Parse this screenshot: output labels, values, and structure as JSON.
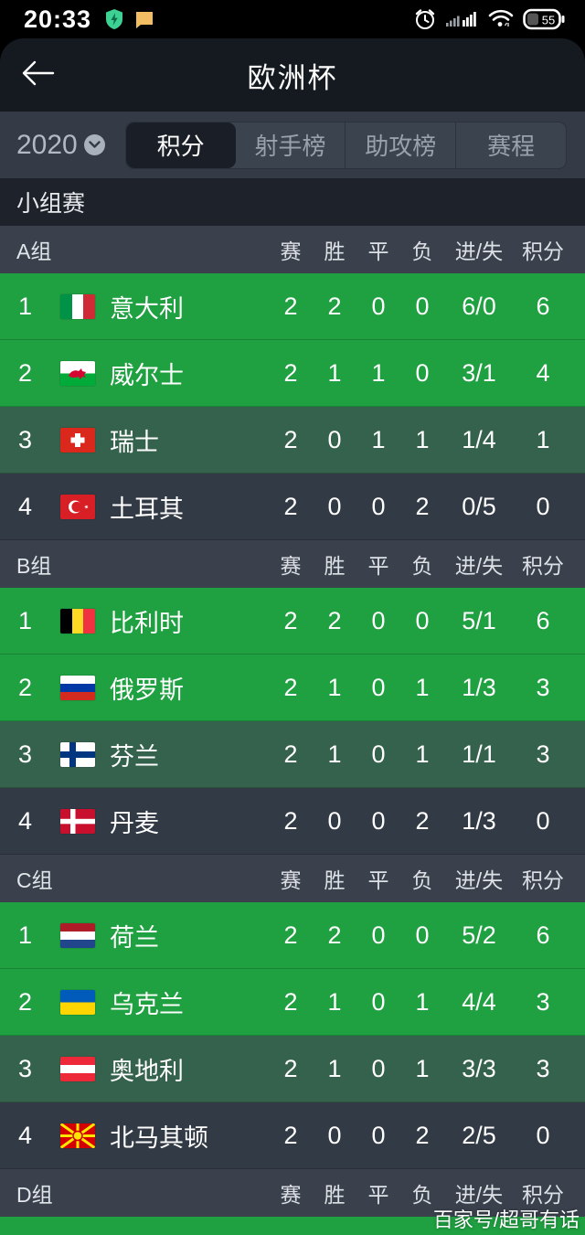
{
  "status_bar": {
    "time": "20:33",
    "battery_percent": "55",
    "left_icons": [
      "shield-icon",
      "message-icon"
    ],
    "right_icons": [
      "alarm-icon",
      "signal-icon",
      "wifi-icon",
      "battery-icon"
    ]
  },
  "header": {
    "title": "欧洲杯"
  },
  "filter_bar": {
    "season": "2020",
    "tabs": [
      {
        "label": "积分",
        "active": true
      },
      {
        "label": "射手榜",
        "active": false
      },
      {
        "label": "助攻榜",
        "active": false
      },
      {
        "label": "赛程",
        "active": false
      }
    ]
  },
  "section": {
    "title": "小组赛"
  },
  "table": {
    "columns": [
      "赛",
      "胜",
      "平",
      "负",
      "进/失",
      "积分"
    ],
    "groups": [
      {
        "name": "A组",
        "teams": [
          {
            "rank": "1",
            "flag": "italy",
            "team": "意大利",
            "played": "2",
            "won": "2",
            "drawn": "0",
            "lost": "0",
            "goals": "6/0",
            "points": "6"
          },
          {
            "rank": "2",
            "flag": "wales",
            "team": "威尔士",
            "played": "2",
            "won": "1",
            "drawn": "1",
            "lost": "0",
            "goals": "3/1",
            "points": "4"
          },
          {
            "rank": "3",
            "flag": "switzerland",
            "team": "瑞士",
            "played": "2",
            "won": "0",
            "drawn": "1",
            "lost": "1",
            "goals": "1/4",
            "points": "1"
          },
          {
            "rank": "4",
            "flag": "turkey",
            "team": "土耳其",
            "played": "2",
            "won": "0",
            "drawn": "0",
            "lost": "2",
            "goals": "0/5",
            "points": "0"
          }
        ]
      },
      {
        "name": "B组",
        "teams": [
          {
            "rank": "1",
            "flag": "belgium",
            "team": "比利时",
            "played": "2",
            "won": "2",
            "drawn": "0",
            "lost": "0",
            "goals": "5/1",
            "points": "6"
          },
          {
            "rank": "2",
            "flag": "russia",
            "team": "俄罗斯",
            "played": "2",
            "won": "1",
            "drawn": "0",
            "lost": "1",
            "goals": "1/3",
            "points": "3"
          },
          {
            "rank": "3",
            "flag": "finland",
            "team": "芬兰",
            "played": "2",
            "won": "1",
            "drawn": "0",
            "lost": "1",
            "goals": "1/1",
            "points": "3"
          },
          {
            "rank": "4",
            "flag": "denmark",
            "team": "丹麦",
            "played": "2",
            "won": "0",
            "drawn": "0",
            "lost": "2",
            "goals": "1/3",
            "points": "0"
          }
        ]
      },
      {
        "name": "C组",
        "teams": [
          {
            "rank": "1",
            "flag": "netherlands",
            "team": "荷兰",
            "played": "2",
            "won": "2",
            "drawn": "0",
            "lost": "0",
            "goals": "5/2",
            "points": "6"
          },
          {
            "rank": "2",
            "flag": "ukraine",
            "team": "乌克兰",
            "played": "2",
            "won": "1",
            "drawn": "0",
            "lost": "1",
            "goals": "4/4",
            "points": "3"
          },
          {
            "rank": "3",
            "flag": "austria",
            "team": "奥地利",
            "played": "2",
            "won": "1",
            "drawn": "0",
            "lost": "1",
            "goals": "3/3",
            "points": "3"
          },
          {
            "rank": "4",
            "flag": "northmacedonia",
            "team": "北马其顿",
            "played": "2",
            "won": "0",
            "drawn": "0",
            "lost": "2",
            "goals": "2/5",
            "points": "0"
          }
        ]
      },
      {
        "name": "D组",
        "teams": []
      }
    ]
  },
  "colors": {
    "row_rank_1_2": "#1fa041",
    "row_rank_3": "#35624c",
    "row_rank_4": "#323a45",
    "accent_green": "#1fa041",
    "shield_green": "#3ed194",
    "message_orange": "#f2bd63"
  },
  "watermark": "百家号/超哥有话"
}
